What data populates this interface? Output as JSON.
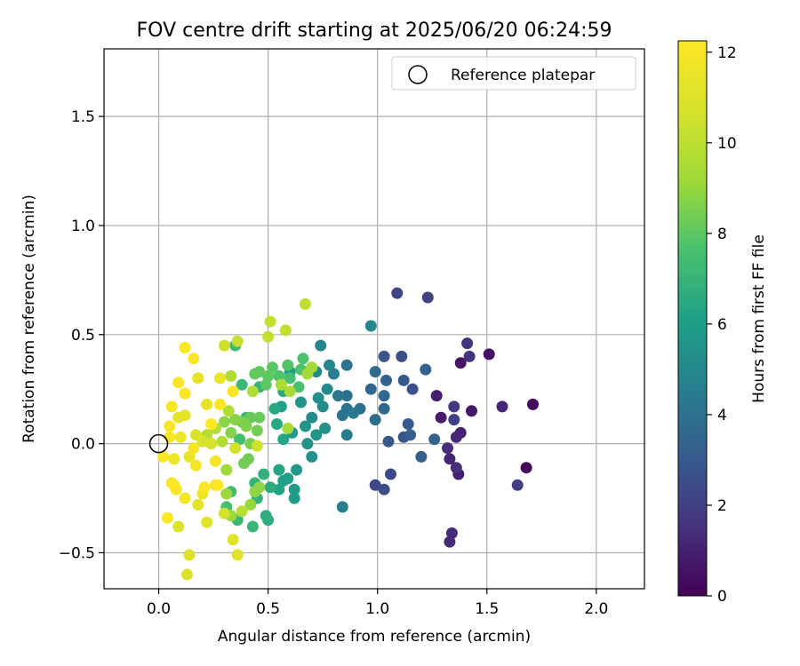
{
  "chart_data": {
    "type": "scatter",
    "title": "FOV centre drift starting at 2025/06/20 06:24:59",
    "xlabel": "Angular distance from reference (arcmin)",
    "ylabel": "Rotation from reference (arcmin)",
    "xlim": [
      -0.25,
      2.22
    ],
    "ylim": [
      -0.665,
      1.81
    ],
    "xticks": [
      0.0,
      0.5,
      1.0,
      1.5,
      2.0
    ],
    "xtick_labels": [
      "0.0",
      "0.5",
      "1.0",
      "1.5",
      "2.0"
    ],
    "yticks": [
      -0.5,
      0.0,
      0.5,
      1.0,
      1.5
    ],
    "ytick_labels": [
      "−0.5",
      "0.0",
      "0.5",
      "1.0",
      "1.5"
    ],
    "grid": true,
    "legend": {
      "position": "top-right",
      "entries": [
        "Reference platepar"
      ]
    },
    "reference_point": {
      "x": 0.0,
      "y": 0.0
    },
    "colorbar": {
      "label": "Hours from first FF file",
      "colormap": "viridis",
      "range": [
        0,
        12.25
      ],
      "ticks": [
        0,
        2,
        4,
        6,
        8,
        10,
        12
      ],
      "tick_labels": [
        "0",
        "2",
        "4",
        "6",
        "8",
        "10",
        "12"
      ]
    },
    "points": [
      {
        "x": 1.71,
        "y": 0.18,
        "c": 0.2
      },
      {
        "x": 1.68,
        "y": -0.11,
        "c": 0.2
      },
      {
        "x": 1.51,
        "y": 0.41,
        "c": 0.5
      },
      {
        "x": 1.38,
        "y": 0.37,
        "c": 0.6
      },
      {
        "x": 1.43,
        "y": 0.15,
        "c": 0.7
      },
      {
        "x": 1.29,
        "y": 0.12,
        "c": 0.8
      },
      {
        "x": 1.27,
        "y": 0.22,
        "c": 0.9
      },
      {
        "x": 1.37,
        "y": -0.14,
        "c": 0.9
      },
      {
        "x": 1.38,
        "y": 0.05,
        "c": 1.0
      },
      {
        "x": 1.33,
        "y": -0.07,
        "c": 1.1
      },
      {
        "x": 1.36,
        "y": 0.03,
        "c": 1.2
      },
      {
        "x": 1.57,
        "y": 0.17,
        "c": 1.2
      },
      {
        "x": 1.34,
        "y": -0.41,
        "c": 1.3
      },
      {
        "x": 1.33,
        "y": -0.45,
        "c": 1.3
      },
      {
        "x": 1.36,
        "y": -0.11,
        "c": 1.4
      },
      {
        "x": 1.32,
        "y": -0.02,
        "c": 1.4
      },
      {
        "x": 1.41,
        "y": 0.46,
        "c": 1.6
      },
      {
        "x": 1.42,
        "y": 0.4,
        "c": 1.6
      },
      {
        "x": 1.35,
        "y": 0.17,
        "c": 1.8
      },
      {
        "x": 1.35,
        "y": 0.11,
        "c": 2.0
      },
      {
        "x": 1.64,
        "y": -0.19,
        "c": 2.0
      },
      {
        "x": 1.23,
        "y": 0.67,
        "c": 2.1
      },
      {
        "x": 1.09,
        "y": 0.69,
        "c": 2.2
      },
      {
        "x": 0.99,
        "y": -0.19,
        "c": 2.3
      },
      {
        "x": 1.06,
        "y": -0.14,
        "c": 2.4
      },
      {
        "x": 1.03,
        "y": -0.21,
        "c": 2.5
      },
      {
        "x": 1.16,
        "y": 0.25,
        "c": 2.6
      },
      {
        "x": 1.11,
        "y": 0.4,
        "c": 2.6
      },
      {
        "x": 1.03,
        "y": 0.4,
        "c": 2.8
      },
      {
        "x": 1.12,
        "y": 0.03,
        "c": 2.8
      },
      {
        "x": 1.05,
        "y": 0.01,
        "c": 2.9
      },
      {
        "x": 1.14,
        "y": 0.09,
        "c": 3.0
      },
      {
        "x": 1.12,
        "y": 0.29,
        "c": 3.0
      },
      {
        "x": 1.15,
        "y": 0.04,
        "c": 3.1
      },
      {
        "x": 1.2,
        "y": -0.06,
        "c": 3.2
      },
      {
        "x": 1.22,
        "y": 0.34,
        "c": 3.3
      },
      {
        "x": 1.26,
        "y": 0.02,
        "c": 3.4
      },
      {
        "x": 1.04,
        "y": 0.29,
        "c": 3.4
      },
      {
        "x": 0.97,
        "y": 0.25,
        "c": 3.5
      },
      {
        "x": 1.03,
        "y": 0.22,
        "c": 3.6
      },
      {
        "x": 1.03,
        "y": 0.16,
        "c": 3.6
      },
      {
        "x": 0.99,
        "y": 0.33,
        "c": 3.7
      },
      {
        "x": 0.99,
        "y": 0.11,
        "c": 3.8
      },
      {
        "x": 0.92,
        "y": 0.16,
        "c": 3.9
      },
      {
        "x": 0.86,
        "y": 0.22,
        "c": 3.9
      },
      {
        "x": 0.86,
        "y": 0.36,
        "c": 4.0
      },
      {
        "x": 0.86,
        "y": 0.16,
        "c": 4.1
      },
      {
        "x": 0.84,
        "y": 0.13,
        "c": 4.2
      },
      {
        "x": 0.89,
        "y": 0.14,
        "c": 4.3
      },
      {
        "x": 0.82,
        "y": 0.22,
        "c": 4.3
      },
      {
        "x": 0.86,
        "y": 0.04,
        "c": 4.4
      },
      {
        "x": 0.8,
        "y": 0.32,
        "c": 4.5
      },
      {
        "x": 0.84,
        "y": -0.29,
        "c": 4.6
      },
      {
        "x": 0.74,
        "y": 0.45,
        "c": 4.8
      },
      {
        "x": 0.78,
        "y": 0.36,
        "c": 4.9
      },
      {
        "x": 0.97,
        "y": 0.54,
        "c": 5.0
      },
      {
        "x": 0.77,
        "y": 0.25,
        "c": 5.0
      },
      {
        "x": 0.72,
        "y": 0.33,
        "c": 5.1
      },
      {
        "x": 0.7,
        "y": 0.12,
        "c": 5.2
      },
      {
        "x": 0.75,
        "y": 0.17,
        "c": 5.2
      },
      {
        "x": 0.76,
        "y": 0.07,
        "c": 5.3
      },
      {
        "x": 0.73,
        "y": 0.21,
        "c": 5.3
      },
      {
        "x": 0.7,
        "y": -0.06,
        "c": 5.4
      },
      {
        "x": 0.68,
        "y": 0.0,
        "c": 5.5
      },
      {
        "x": 0.72,
        "y": 0.04,
        "c": 5.5
      },
      {
        "x": 0.67,
        "y": 0.08,
        "c": 5.6
      },
      {
        "x": 0.65,
        "y": 0.19,
        "c": 5.6
      },
      {
        "x": 0.63,
        "y": -0.12,
        "c": 5.7
      },
      {
        "x": 0.61,
        "y": 0.05,
        "c": 5.8
      },
      {
        "x": 0.62,
        "y": -0.21,
        "c": 5.9
      },
      {
        "x": 0.62,
        "y": -0.25,
        "c": 5.9
      },
      {
        "x": 0.6,
        "y": 0.33,
        "c": 6.0
      },
      {
        "x": 0.59,
        "y": -0.16,
        "c": 6.0
      },
      {
        "x": 0.57,
        "y": -0.17,
        "c": 6.1
      },
      {
        "x": 0.56,
        "y": 0.17,
        "c": 6.1
      },
      {
        "x": 0.55,
        "y": -0.21,
        "c": 6.2
      },
      {
        "x": 0.57,
        "y": 0.02,
        "c": 6.3
      },
      {
        "x": 0.55,
        "y": -0.12,
        "c": 6.3
      },
      {
        "x": 0.54,
        "y": 0.09,
        "c": 6.4
      },
      {
        "x": 0.53,
        "y": 0.16,
        "c": 6.5
      },
      {
        "x": 0.57,
        "y": 0.24,
        "c": 6.5
      },
      {
        "x": 0.51,
        "y": -0.2,
        "c": 6.6
      },
      {
        "x": 0.49,
        "y": -0.33,
        "c": 6.7
      },
      {
        "x": 0.5,
        "y": -0.35,
        "c": 6.7
      },
      {
        "x": 0.48,
        "y": -0.14,
        "c": 6.8
      },
      {
        "x": 0.46,
        "y": 0.26,
        "c": 6.9
      },
      {
        "x": 0.45,
        "y": -0.25,
        "c": 6.9
      },
      {
        "x": 0.44,
        "y": -0.18,
        "c": 7.0
      },
      {
        "x": 0.43,
        "y": -0.38,
        "c": 7.1
      },
      {
        "x": 0.4,
        "y": 0.12,
        "c": 7.1
      },
      {
        "x": 0.38,
        "y": 0.27,
        "c": 7.2
      },
      {
        "x": 0.36,
        "y": -0.35,
        "c": 7.2
      },
      {
        "x": 0.35,
        "y": 0.45,
        "c": 7.3
      },
      {
        "x": 0.37,
        "y": 0.02,
        "c": 7.4
      },
      {
        "x": 0.33,
        "y": -0.22,
        "c": 7.4
      },
      {
        "x": 0.31,
        "y": -0.29,
        "c": 7.5
      },
      {
        "x": 0.6,
        "y": 0.3,
        "c": 7.5
      },
      {
        "x": 0.64,
        "y": 0.26,
        "c": 7.6
      },
      {
        "x": 0.65,
        "y": 0.34,
        "c": 7.7
      },
      {
        "x": 0.66,
        "y": 0.39,
        "c": 7.7
      },
      {
        "x": 0.59,
        "y": 0.36,
        "c": 7.8
      },
      {
        "x": 0.55,
        "y": 0.31,
        "c": 7.8
      },
      {
        "x": 0.52,
        "y": 0.35,
        "c": 7.9
      },
      {
        "x": 0.5,
        "y": 0.31,
        "c": 8.0
      },
      {
        "x": 0.49,
        "y": 0.27,
        "c": 8.0
      },
      {
        "x": 0.46,
        "y": 0.33,
        "c": 8.1
      },
      {
        "x": 0.44,
        "y": 0.32,
        "c": 8.1
      },
      {
        "x": 0.42,
        "y": 0.12,
        "c": 8.2
      },
      {
        "x": 0.46,
        "y": 0.12,
        "c": 8.2
      },
      {
        "x": 0.41,
        "y": -0.07,
        "c": 8.3
      },
      {
        "x": 0.39,
        "y": -0.09,
        "c": 8.4
      },
      {
        "x": 0.45,
        "y": 0.06,
        "c": 8.4
      },
      {
        "x": 0.42,
        "y": 0.0,
        "c": 8.5
      },
      {
        "x": 0.4,
        "y": 0.08,
        "c": 8.6
      },
      {
        "x": 0.38,
        "y": 0.1,
        "c": 8.6
      },
      {
        "x": 0.35,
        "y": 0.11,
        "c": 8.7
      },
      {
        "x": 0.33,
        "y": 0.05,
        "c": 8.7
      },
      {
        "x": 0.3,
        "y": 0.1,
        "c": 8.8
      },
      {
        "x": 0.46,
        "y": -0.2,
        "c": 8.9
      },
      {
        "x": 0.44,
        "y": -0.22,
        "c": 8.9
      },
      {
        "x": 0.42,
        "y": -0.28,
        "c": 9.0
      },
      {
        "x": 0.33,
        "y": -0.33,
        "c": 9.1
      },
      {
        "x": 0.31,
        "y": -0.23,
        "c": 9.1
      },
      {
        "x": 0.31,
        "y": -0.12,
        "c": 9.2
      },
      {
        "x": 0.7,
        "y": 0.35,
        "c": 9.2
      },
      {
        "x": 0.68,
        "y": 0.32,
        "c": 9.3
      },
      {
        "x": 0.6,
        "y": 0.24,
        "c": 9.4
      },
      {
        "x": 0.59,
        "y": 0.07,
        "c": 9.4
      },
      {
        "x": 0.56,
        "y": 0.27,
        "c": 9.5
      },
      {
        "x": 0.43,
        "y": 0.24,
        "c": 9.6
      },
      {
        "x": 0.33,
        "y": 0.31,
        "c": 9.6
      },
      {
        "x": 0.32,
        "y": 0.15,
        "c": 9.7
      },
      {
        "x": 0.29,
        "y": 0.01,
        "c": 9.7
      },
      {
        "x": 0.26,
        "y": 0.07,
        "c": 9.8
      },
      {
        "x": 0.22,
        "y": 0.04,
        "c": 9.8
      },
      {
        "x": 0.38,
        "y": -0.31,
        "c": 9.9
      },
      {
        "x": 0.67,
        "y": 0.64,
        "c": 10.0
      },
      {
        "x": 0.58,
        "y": 0.52,
        "c": 10.1
      },
      {
        "x": 0.51,
        "y": 0.56,
        "c": 10.2
      },
      {
        "x": 0.5,
        "y": 0.49,
        "c": 10.3
      },
      {
        "x": 0.36,
        "y": 0.47,
        "c": 10.4
      },
      {
        "x": 0.3,
        "y": 0.45,
        "c": 10.5
      },
      {
        "x": 0.45,
        "y": -0.01,
        "c": 10.5
      },
      {
        "x": 0.35,
        "y": -0.02,
        "c": 10.6
      },
      {
        "x": 0.3,
        "y": -0.32,
        "c": 10.7
      },
      {
        "x": 0.24,
        "y": 0.0,
        "c": 10.7
      },
      {
        "x": 0.2,
        "y": 0.01,
        "c": 10.8
      },
      {
        "x": 0.17,
        "y": 0.04,
        "c": 10.9
      },
      {
        "x": 0.09,
        "y": -0.38,
        "c": 10.9
      },
      {
        "x": 0.13,
        "y": -0.6,
        "c": 11.0
      },
      {
        "x": 0.14,
        "y": -0.51,
        "c": 11.0
      },
      {
        "x": 0.36,
        "y": -0.51,
        "c": 11.1
      },
      {
        "x": 0.34,
        "y": -0.44,
        "c": 11.1
      },
      {
        "x": 0.22,
        "y": -0.36,
        "c": 11.2
      },
      {
        "x": 0.18,
        "y": -0.28,
        "c": 11.2
      },
      {
        "x": 0.12,
        "y": 0.13,
        "c": 11.3
      },
      {
        "x": 0.09,
        "y": 0.12,
        "c": 11.3
      },
      {
        "x": 0.18,
        "y": 0.3,
        "c": 11.4
      },
      {
        "x": 0.22,
        "y": 0.18,
        "c": 11.4
      },
      {
        "x": 0.28,
        "y": 0.3,
        "c": 11.5
      },
      {
        "x": 0.14,
        "y": -0.06,
        "c": 11.5
      },
      {
        "x": 0.1,
        "y": 0.03,
        "c": 11.6
      },
      {
        "x": 0.07,
        "y": -0.07,
        "c": 11.6
      },
      {
        "x": 0.26,
        "y": -0.19,
        "c": 11.7
      },
      {
        "x": 0.2,
        "y": -0.23,
        "c": 11.7
      },
      {
        "x": 0.12,
        "y": -0.25,
        "c": 11.8
      },
      {
        "x": 0.08,
        "y": -0.21,
        "c": 11.8
      },
      {
        "x": 0.06,
        "y": -0.18,
        "c": 11.8
      },
      {
        "x": 0.26,
        "y": -0.08,
        "c": 11.9
      },
      {
        "x": 0.17,
        "y": -0.1,
        "c": 11.9
      },
      {
        "x": 0.16,
        "y": -0.02,
        "c": 11.9
      },
      {
        "x": 0.05,
        "y": 0.03,
        "c": 12.0
      },
      {
        "x": 0.05,
        "y": 0.08,
        "c": 12.0
      },
      {
        "x": 0.06,
        "y": 0.17,
        "c": 12.0
      },
      {
        "x": 0.09,
        "y": 0.28,
        "c": 12.1
      },
      {
        "x": 0.12,
        "y": 0.44,
        "c": 12.1
      },
      {
        "x": 0.16,
        "y": 0.39,
        "c": 12.1
      },
      {
        "x": 0.34,
        "y": 0.24,
        "c": 12.1
      },
      {
        "x": 0.28,
        "y": 0.18,
        "c": 12.2
      },
      {
        "x": 0.24,
        "y": 0.09,
        "c": 12.2
      },
      {
        "x": 0.12,
        "y": 0.23,
        "c": 12.2
      },
      {
        "x": 0.07,
        "y": -0.19,
        "c": 12.2
      },
      {
        "x": 0.04,
        "y": -0.34,
        "c": 12.2
      },
      {
        "x": 0.02,
        "y": -0.06,
        "c": 12.2
      },
      {
        "x": 0.21,
        "y": -0.2,
        "c": 12.2
      },
      {
        "x": 0.27,
        "y": -0.19,
        "c": 12.2
      }
    ]
  }
}
